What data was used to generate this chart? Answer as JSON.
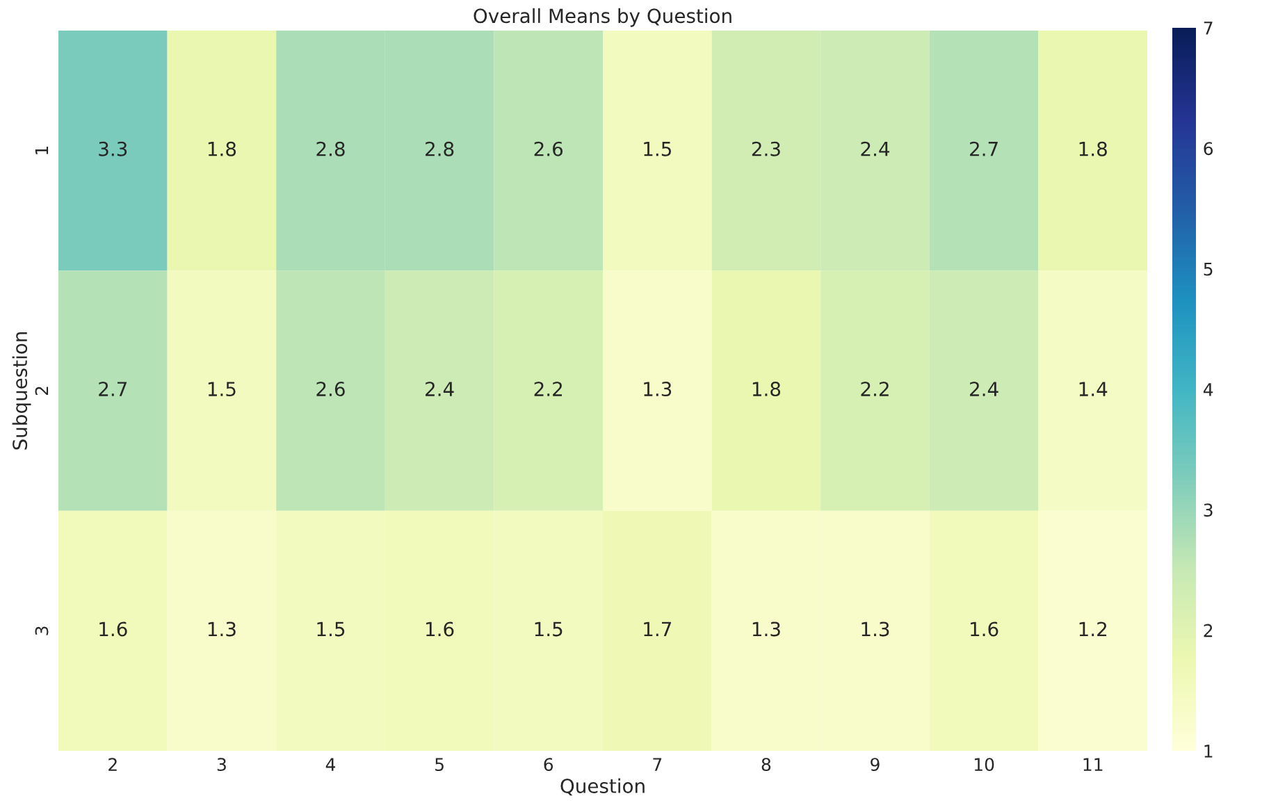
{
  "chart_data": {
    "type": "heatmap",
    "title": "Overall Means by Question",
    "xlabel": "Question",
    "ylabel": "Subquestion",
    "categories": [
      "2",
      "3",
      "4",
      "5",
      "6",
      "7",
      "8",
      "9",
      "10",
      "11"
    ],
    "y_categories": [
      "1",
      "2",
      "3"
    ],
    "cells": [
      [
        3.3,
        1.8,
        2.8,
        2.8,
        2.6,
        1.5,
        2.3,
        2.4,
        2.7,
        1.8
      ],
      [
        2.7,
        1.5,
        2.6,
        2.4,
        2.2,
        1.3,
        1.8,
        2.2,
        2.4,
        1.4
      ],
      [
        1.6,
        1.3,
        1.5,
        1.6,
        1.5,
        1.7,
        1.3,
        1.3,
        1.6,
        1.2
      ]
    ],
    "clim": [
      1,
      7
    ],
    "cticks": [
      1,
      2,
      3,
      4,
      5,
      6,
      7
    ],
    "data_labels": true
  }
}
